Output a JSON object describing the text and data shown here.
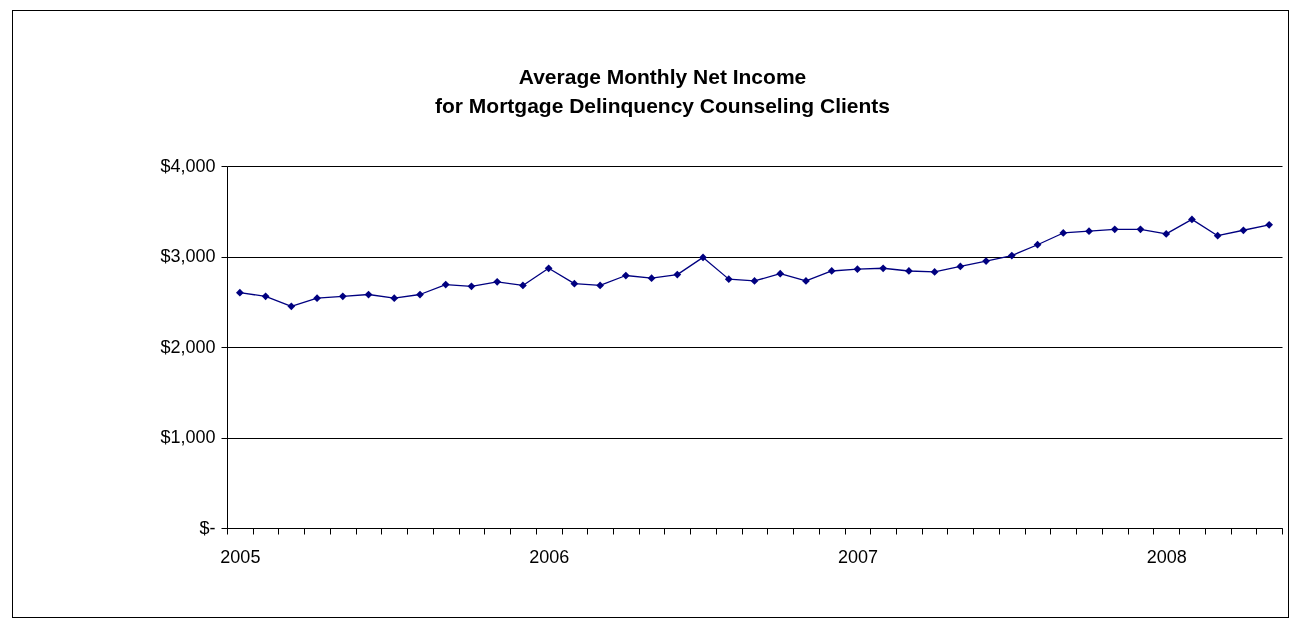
{
  "chart_data": {
    "type": "line",
    "title": "Average Monthly Net Income\nfor Mortgage Delinquency Counseling Clients",
    "categories": [
      "2005",
      null,
      null,
      null,
      null,
      null,
      null,
      null,
      null,
      null,
      null,
      null,
      "2006",
      null,
      null,
      null,
      null,
      null,
      null,
      null,
      null,
      null,
      null,
      null,
      "2007",
      null,
      null,
      null,
      null,
      null,
      null,
      null,
      null,
      null,
      null,
      null,
      "2008",
      null,
      null,
      null,
      null
    ],
    "series": [
      {
        "color": "#000080",
        "values": [
          2600,
          2560,
          2450,
          2540,
          2560,
          2580,
          2540,
          2580,
          2690,
          2670,
          2720,
          2680,
          2870,
          2700,
          2680,
          2790,
          2760,
          2800,
          2990,
          2750,
          2730,
          2810,
          2730,
          2840,
          2860,
          2870,
          2840,
          2830,
          2890,
          2950,
          3010,
          3130,
          3260,
          3280,
          3300,
          3300,
          3250,
          3410,
          3230,
          3290,
          3350
        ]
      }
    ],
    "ylim": [
      0,
      4000
    ],
    "yticks": [
      {
        "value": 0,
        "label": "$-"
      },
      {
        "value": 1000,
        "label": "$1,000"
      },
      {
        "value": 2000,
        "label": "$2,000"
      },
      {
        "value": 3000,
        "label": "$3,000"
      },
      {
        "value": 4000,
        "label": "$4,000"
      }
    ],
    "grid": "y",
    "marker": "diamond",
    "line_style": "solid",
    "legend": false
  }
}
